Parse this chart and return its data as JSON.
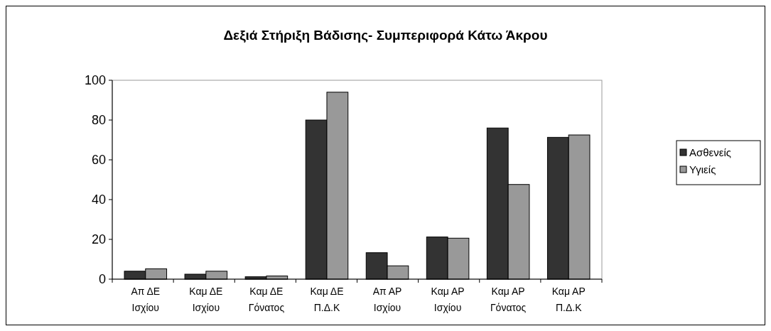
{
  "chart_data": {
    "type": "bar",
    "title": "Δεξιά Στήριξη Βάδισης- Συμπεριφορά Κάτω Άκρου",
    "categories": [
      "Απ  ΔΕ\nΙσχίου",
      "Καμ ΔΕ\nΙσχίου",
      "Καμ ΔΕ\nΓόνατος",
      "Καμ ΔΕ\nΠ.Δ.Κ",
      "Απ  ΑΡ\nΙσχίου",
      "Καμ ΑΡ\nΙσχίου",
      "Καμ ΑΡ\nΓόνατος",
      "Καμ ΑΡ\nΠ.Δ.Κ"
    ],
    "series": [
      {
        "name": "Ασθενείς",
        "color": "#333333",
        "values": [
          4,
          2.5,
          1.2,
          80,
          13.3,
          21.2,
          76,
          71.3
        ]
      },
      {
        "name": "Υγιείς",
        "color": "#999999",
        "values": [
          5.2,
          4,
          1.6,
          94,
          6.7,
          20.6,
          47.6,
          72.5
        ]
      }
    ],
    "ylim": [
      0,
      100
    ],
    "yticks": [
      0,
      20,
      40,
      60,
      80,
      100
    ],
    "grid": false,
    "legend": "right"
  }
}
